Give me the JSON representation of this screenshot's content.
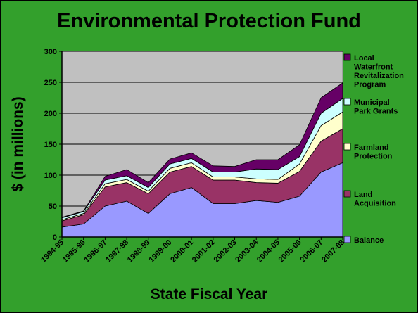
{
  "slide": {
    "background": "#33a02c",
    "border": "#000000"
  },
  "chart_data": {
    "type": "area",
    "stacked": true,
    "title": "Environmental Protection Fund",
    "xlabel": "State Fiscal Year",
    "ylabel": "$ (in millions)",
    "ylim": [
      0,
      300
    ],
    "yticks": [
      0,
      50,
      100,
      150,
      200,
      250,
      300
    ],
    "grid": true,
    "legend_position": "right",
    "plot_background": "#c0c0c0",
    "categories": [
      "1994-95",
      "1995-96",
      "1996-97",
      "1997-98",
      "1998-99",
      "1999-00",
      "2000-01",
      "2001-02",
      "2002-03",
      "2003-04",
      "2004-05",
      "2005-06",
      "2006-07",
      "2007-08"
    ],
    "series": [
      {
        "name": "Balance",
        "color": "#9999ff",
        "values": [
          16,
          21,
          50,
          58,
          38,
          70,
          80,
          54,
          54,
          59,
          56,
          66,
          105,
          120
        ]
      },
      {
        "name": "Land Acquisition",
        "color": "#993366",
        "values": [
          10,
          15,
          31,
          30,
          32,
          35,
          34,
          38,
          38,
          29,
          31,
          40,
          50,
          55
        ]
      },
      {
        "name": "Farmland Protection",
        "color": "#ffffcc",
        "values": [
          2,
          2,
          5,
          5,
          4,
          6,
          6,
          5,
          5,
          6,
          6,
          12,
          25,
          27
        ]
      },
      {
        "name": "Municipal Park Grants",
        "color": "#ccffff",
        "values": [
          3,
          3,
          6,
          6,
          6,
          7,
          7,
          8,
          8,
          16,
          16,
          12,
          20,
          22
        ]
      },
      {
        "name": "Local Waterfront Revitalization Program",
        "color": "#660066",
        "values": [
          1,
          1,
          6,
          10,
          8,
          8,
          9,
          10,
          9,
          15,
          16,
          19,
          25,
          25
        ]
      }
    ],
    "legend": [
      {
        "series": 4,
        "lines": [
          "Local",
          "Waterfront",
          "Revitalization",
          "Program"
        ]
      },
      {
        "series": 3,
        "lines": [
          "Municipal",
          "Park Grants"
        ]
      },
      {
        "series": 2,
        "lines": [
          "Farmland",
          "Protection"
        ]
      },
      {
        "series": 1,
        "lines": [
          "Land",
          "Acquisition"
        ]
      },
      {
        "series": 0,
        "lines": [
          "Balance"
        ]
      }
    ]
  }
}
